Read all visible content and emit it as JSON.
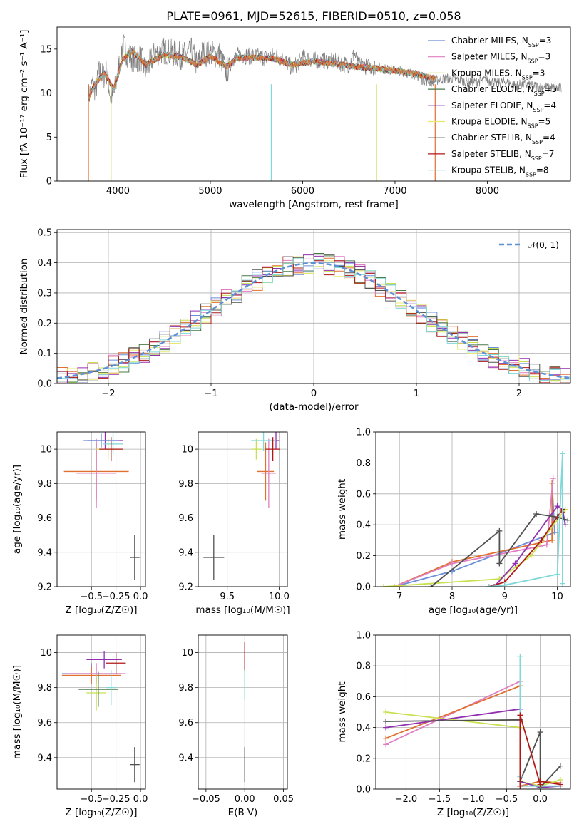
{
  "chart_data": [
    {
      "id": "spectrum",
      "type": "line",
      "title": "PLATE=0961, MJD=52615, FIBERID=0510, z=0.058",
      "xlabel": "wavelength [Angstrom, rest frame]",
      "ylabel": "Flux [f_λ 10^-17 erg cm^-2 s^-1 A^-1]",
      "xlim": [
        3340,
        8900
      ],
      "ylim": [
        0,
        17.5
      ],
      "xticks": [
        4000,
        5000,
        6000,
        7000,
        8000
      ],
      "yticks": [
        0,
        5,
        10,
        15
      ],
      "grid": false,
      "legend_position": "top-right",
      "data_series": {
        "name": "data",
        "color": "#808080",
        "x": [
          3680,
          3720,
          3760,
          3800,
          3840,
          3880,
          3920,
          3960,
          4000,
          4050,
          4100,
          4150,
          4200,
          4250,
          4300,
          4400,
          4500,
          4600,
          4700,
          4800,
          4861,
          4900,
          5000,
          5100,
          5175,
          5250,
          5300,
          5400,
          5500,
          5600,
          5700,
          5800,
          5890,
          6000,
          6100,
          6200,
          6300,
          6400,
          6500,
          6563,
          6600,
          6700,
          6800,
          6900,
          7000,
          7100,
          7200,
          7300,
          7400,
          7500,
          7600,
          7700,
          7800,
          7900,
          8000,
          8100,
          8200,
          8300,
          8400,
          8500,
          8600,
          8700,
          8800
        ],
        "y": [
          9.5,
          11.0,
          10.5,
          12.5,
          11.8,
          12.5,
          9.5,
          10.0,
          12.5,
          15.5,
          14.5,
          14.0,
          13.8,
          14.0,
          12.5,
          14.5,
          14.8,
          14.5,
          14.2,
          14.8,
          13.0,
          14.5,
          14.5,
          14.3,
          12.5,
          14.0,
          14.3,
          14.2,
          14.2,
          14.0,
          14.3,
          13.8,
          12.8,
          14.0,
          13.8,
          13.6,
          13.7,
          13.4,
          13.2,
          14.5,
          13.2,
          13.0,
          13.0,
          12.7,
          12.6,
          12.4,
          12.2,
          11.5,
          11.3,
          11.6,
          11.7,
          11.5,
          11.2,
          11.3,
          11.5,
          11.1,
          11.3,
          10.9,
          11.0,
          10.8,
          10.7,
          10.6,
          10.5
        ]
      },
      "model_x": [
        3680,
        3750,
        3850,
        3950,
        4050,
        4150,
        4300,
        4500,
        4700,
        4861,
        5000,
        5175,
        5300,
        5500,
        5700,
        5890,
        6100,
        6300,
        6563,
        6700,
        6900,
        7100,
        7300,
        7450
      ],
      "model_y": [
        9.5,
        11.0,
        12.3,
        10.5,
        13.8,
        14.8,
        13.2,
        14.4,
        14.0,
        13.2,
        14.2,
        13.0,
        14.0,
        14.0,
        13.9,
        13.2,
        13.6,
        13.4,
        13.0,
        12.9,
        12.7,
        12.4,
        12.0,
        11.6
      ],
      "series": [
        {
          "name": "Chabrier MILES, N_SSP=3",
          "color": "#6a8fd8",
          "xmax": 7450
        },
        {
          "name": "Salpeter MILES, N_SSP=3",
          "color": "#e07fc0",
          "xmax": 7450
        },
        {
          "name": "Kroupa MILES, N_SSP=3",
          "color": "#c8e050",
          "xmax": 7450
        },
        {
          "name": "Chabrier ELODIE, N_SSP=5",
          "color": "#4a7a4a",
          "xmax": 7450
        },
        {
          "name": "Salpeter ELODIE, N_SSP=4",
          "color": "#9030b0",
          "xmax": 7450
        },
        {
          "name": "Kroupa ELODIE, N_SSP=5",
          "color": "#e8e870",
          "xmax": 7450
        },
        {
          "name": "Chabrier STELIB, N_SSP=4",
          "color": "#505050",
          "xmax": 7450
        },
        {
          "name": "Salpeter STELIB, N_SSP=7",
          "color": "#b01818",
          "xmax": 7450
        },
        {
          "name": "Kroupa STELIB, N_SSP=8",
          "color": "#80d8d8",
          "xmax": 7450
        }
      ],
      "extra_model_color": "#e07030"
    },
    {
      "id": "residuals",
      "type": "line",
      "xlabel": "(data-model)/error",
      "ylabel": "Normed distribution",
      "xlim": [
        -2.5,
        2.5
      ],
      "ylim": [
        0,
        0.51
      ],
      "xticks": [
        -2,
        -1,
        0,
        1,
        2
      ],
      "xticklabels": [
        "−2",
        "−1",
        "0",
        "1",
        "2"
      ],
      "yticks": [
        0.0,
        0.1,
        0.2,
        0.3,
        0.4,
        0.5
      ],
      "grid": true,
      "legend_position": "top-right",
      "normal_label": "𝒩(0, 1)",
      "normal_color": "#5b8fd6",
      "bin_width": 0.1
    },
    {
      "id": "age-vs-Z",
      "type": "scatter",
      "xlabel": "Z [log10(Z/Z⊙)]",
      "ylabel": "age [log10(age/yr)]",
      "xlim": [
        -0.85,
        0.05
      ],
      "ylim": [
        9.2,
        10.1
      ],
      "xticks": [
        -0.5,
        -0.25,
        0.0
      ],
      "xticklabels": [
        "−0.5",
        "−0.25",
        "0.0"
      ],
      "yticks": [
        9.2,
        9.4,
        9.6,
        9.8,
        10.0
      ],
      "grid": true,
      "points": [
        {
          "x": -0.45,
          "y": 9.87,
          "xerr": 0.33,
          "yerr": 0.17,
          "color": "#e07030"
        },
        {
          "x": -0.45,
          "y": 9.86,
          "xerr": 0.2,
          "yerr": 0.2,
          "color": "#e07fc0"
        },
        {
          "x": -0.33,
          "y": 10.0,
          "xerr": 0.12,
          "yerr": 0.06,
          "color": "#c8e050"
        },
        {
          "x": -0.36,
          "y": 10.05,
          "xerr": 0.18,
          "yerr": 0.05,
          "color": "#9030b0"
        },
        {
          "x": -0.28,
          "y": 10.03,
          "xerr": 0.1,
          "yerr": 0.06,
          "color": "#80d8d8"
        },
        {
          "x": -0.3,
          "y": 10.0,
          "xerr": 0.12,
          "yerr": 0.07,
          "color": "#b01818"
        },
        {
          "x": -0.4,
          "y": 10.05,
          "xerr": 0.18,
          "yerr": 0.04,
          "color": "#6a8fd8"
        },
        {
          "x": -0.06,
          "y": 9.37,
          "xerr": 0.05,
          "yerr": 0.13,
          "color": "#505050"
        }
      ]
    },
    {
      "id": "age-vs-mass",
      "type": "scatter",
      "xlabel": "mass [log10(M/M⊙)]",
      "xlim": [
        9.22,
        10.08
      ],
      "ylim": [
        9.2,
        10.1
      ],
      "xticks": [
        9.5,
        10.0
      ],
      "xticklabels": [
        "9.5",
        "10.0"
      ],
      "yticks": [
        9.2,
        9.4,
        9.6,
        9.8,
        10.0
      ],
      "grid": true,
      "points": [
        {
          "x": 9.87,
          "y": 9.87,
          "xerr": 0.08,
          "yerr": 0.17,
          "color": "#e07030"
        },
        {
          "x": 9.9,
          "y": 9.86,
          "xerr": 0.07,
          "yerr": 0.2,
          "color": "#e07fc0"
        },
        {
          "x": 9.78,
          "y": 10.0,
          "xerr": 0.05,
          "yerr": 0.06,
          "color": "#c8e050"
        },
        {
          "x": 9.97,
          "y": 10.05,
          "xerr": 0.03,
          "yerr": 0.05,
          "color": "#9030b0"
        },
        {
          "x": 9.85,
          "y": 10.05,
          "xerr": 0.12,
          "yerr": 0.06,
          "color": "#80d8d8"
        },
        {
          "x": 9.94,
          "y": 10.0,
          "xerr": 0.07,
          "yerr": 0.07,
          "color": "#b01818"
        },
        {
          "x": 9.37,
          "y": 9.37,
          "xerr": 0.1,
          "yerr": 0.13,
          "color": "#505050"
        }
      ]
    },
    {
      "id": "mass-weight-vs-age",
      "type": "line",
      "xlabel": "age [log10(age/yr)]",
      "ylabel": "mass weight",
      "xlim": [
        6.55,
        10.25
      ],
      "ylim": [
        0,
        1.0
      ],
      "xticks": [
        7,
        8,
        9,
        10
      ],
      "yticks": [
        0.0,
        0.2,
        0.4,
        0.6,
        0.8,
        1.0
      ],
      "grid": true,
      "series": [
        {
          "color": "#6a8fd8",
          "x": [
            6.9,
            8.0,
            9.95,
            9.9
          ],
          "y": [
            0.0,
            0.1,
            0.35,
            0.67
          ]
        },
        {
          "color": "#e07030",
          "x": [
            6.9,
            8.0,
            9.9,
            9.9
          ],
          "y": [
            0.0,
            0.16,
            0.3,
            0.67
          ]
        },
        {
          "color": "#e07fc0",
          "x": [
            6.9,
            8.0,
            9.8,
            9.92
          ],
          "y": [
            0.0,
            0.15,
            0.27,
            0.7
          ]
        },
        {
          "color": "#c8e050",
          "x": [
            6.7,
            8.9,
            9.5,
            10.15,
            10.1
          ],
          "y": [
            0.0,
            0.05,
            0.2,
            0.5,
            0.45
          ]
        },
        {
          "color": "#9030b0",
          "x": [
            8.8,
            9.2,
            10.0,
            10.1,
            10.15
          ],
          "y": [
            0.0,
            0.15,
            0.52,
            0.5,
            0.4
          ]
        },
        {
          "color": "#505050",
          "x": [
            7.6,
            8.9,
            8.9,
            9.6,
            10.0,
            10.2
          ],
          "y": [
            0.0,
            0.36,
            0.15,
            0.47,
            0.45,
            0.43
          ]
        },
        {
          "color": "#b01818",
          "x": [
            8.7,
            9.0,
            9.7,
            10.1,
            10.1
          ],
          "y": [
            0.0,
            0.03,
            0.3,
            0.5,
            0.48
          ]
        },
        {
          "color": "#80d8d8",
          "x": [
            8.7,
            9.0,
            10.0,
            10.1,
            10.1
          ],
          "y": [
            0.0,
            0.01,
            0.08,
            0.86,
            0.02
          ]
        }
      ]
    },
    {
      "id": "mass-vs-Z",
      "type": "scatter",
      "xlabel": "Z [log10(Z/Z⊙)]",
      "ylabel": "mass [log10(M/M⊙)]",
      "xlim": [
        -0.85,
        0.05
      ],
      "ylim": [
        9.22,
        10.1
      ],
      "xticks": [
        -0.5,
        -0.25,
        0.0
      ],
      "xticklabels": [
        "−0.5",
        "−0.25",
        "0.0"
      ],
      "yticks": [
        9.4,
        9.6,
        9.8,
        10.0
      ],
      "grid": true,
      "points": [
        {
          "x": -0.5,
          "y": 9.88,
          "xerr": 0.3,
          "yerr": 0.06,
          "color": "#6a8fd8"
        },
        {
          "x": -0.5,
          "y": 9.87,
          "xerr": 0.3,
          "yerr": 0.05,
          "color": "#e07030"
        },
        {
          "x": -0.45,
          "y": 9.88,
          "xerr": 0.3,
          "yerr": 0.06,
          "color": "#e07fc0"
        },
        {
          "x": -0.45,
          "y": 9.77,
          "xerr": 0.1,
          "yerr": 0.1,
          "color": "#c8e050"
        },
        {
          "x": -0.37,
          "y": 9.96,
          "xerr": 0.18,
          "yerr": 0.05,
          "color": "#9030b0"
        },
        {
          "x": -0.43,
          "y": 9.79,
          "xerr": 0.2,
          "yerr": 0.1,
          "color": "#4a7a4a"
        },
        {
          "x": -0.25,
          "y": 9.94,
          "xerr": 0.1,
          "yerr": 0.06,
          "color": "#b01818"
        },
        {
          "x": -0.3,
          "y": 9.8,
          "xerr": 0.05,
          "yerr": 0.1,
          "color": "#80d8d8"
        },
        {
          "x": -0.06,
          "y": 9.36,
          "xerr": 0.05,
          "yerr": 0.1,
          "color": "#505050"
        }
      ]
    },
    {
      "id": "mass-vs-ebv",
      "type": "scatter",
      "xlabel": "E(B-V)",
      "xlim": [
        -0.06,
        0.055
      ],
      "ylim": [
        9.22,
        10.1
      ],
      "xticks": [
        -0.05,
        0.0,
        0.05
      ],
      "xticklabels": [
        "−0.05",
        "0.00",
        "0.05"
      ],
      "yticks": [
        9.4,
        9.6,
        9.8,
        10.0
      ],
      "grid": true,
      "points": [
        {
          "x": 0.0,
          "y": 9.87,
          "yerr": 0.1,
          "color": "#c8e050"
        },
        {
          "x": 0.0,
          "y": 9.85,
          "yerr": 0.12,
          "color": "#80d8d8"
        },
        {
          "x": 0.0,
          "y": 9.98,
          "yerr": 0.08,
          "color": "#b01818"
        },
        {
          "x": 0.0,
          "y": 9.36,
          "yerr": 0.1,
          "color": "#505050"
        }
      ]
    },
    {
      "id": "mass-weight-vs-Z",
      "type": "line",
      "xlabel": "Z [log10(Z/Z⊙)]",
      "ylabel": "mass weight",
      "xlim": [
        -2.45,
        0.45
      ],
      "ylim": [
        0,
        1.0
      ],
      "xticks": [
        -2.0,
        -1.5,
        -1.0,
        -0.5,
        0.0
      ],
      "xticklabels": [
        "−2.0",
        "−1.5",
        "−1.0",
        "−0.5",
        "0.0"
      ],
      "yticks": [
        0.0,
        0.2,
        0.4,
        0.6,
        0.8,
        1.0
      ],
      "grid": true,
      "series": [
        {
          "color": "#e07fc0",
          "x": [
            -2.3,
            -0.3,
            -0.3,
            0.0,
            0.3
          ],
          "y": [
            0.29,
            0.7,
            0.02,
            0.05,
            0.04
          ]
        },
        {
          "color": "#e07030",
          "x": [
            -2.3,
            -0.3,
            -0.3,
            0.0,
            0.3
          ],
          "y": [
            0.33,
            0.67,
            0.02,
            0.05,
            0.04
          ]
        },
        {
          "color": "#c8e050",
          "x": [
            -2.3,
            -0.3,
            -0.3,
            0.0,
            0.3
          ],
          "y": [
            0.5,
            0.4,
            0.05,
            0.02,
            0.06
          ]
        },
        {
          "color": "#9030b0",
          "x": [
            -2.3,
            -0.3,
            -0.3,
            0.0,
            0.3
          ],
          "y": [
            0.4,
            0.52,
            0.05,
            0.01,
            0.02
          ]
        },
        {
          "color": "#505050",
          "x": [
            -2.3,
            -0.3,
            -0.3,
            0.0,
            0.0,
            0.3
          ],
          "y": [
            0.44,
            0.45,
            0.05,
            0.37,
            0.01,
            0.15
          ]
        },
        {
          "color": "#80d8d8",
          "x": [
            -0.3,
            -0.3,
            -0.3,
            0.0,
            0.3
          ],
          "y": [
            0.86,
            0.08,
            0.02,
            0.02,
            0.02
          ]
        },
        {
          "color": "#b01818",
          "x": [
            -0.3,
            -0.3,
            0.0,
            0.0,
            0.3
          ],
          "y": [
            0.02,
            0.48,
            0.03,
            0.05,
            0.03
          ]
        }
      ]
    }
  ]
}
